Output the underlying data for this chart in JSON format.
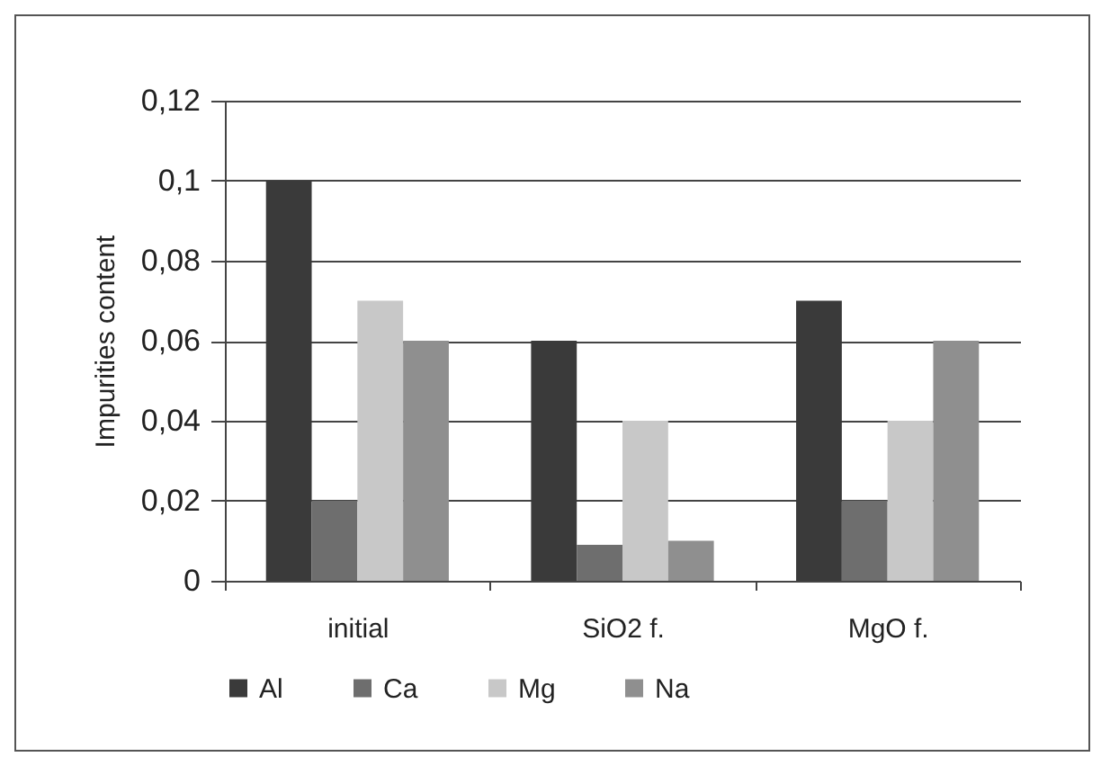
{
  "chart_data": {
    "type": "bar",
    "ylabel": "Impurities content",
    "categories": [
      "initial",
      "SiO2 f.",
      "MgO f."
    ],
    "series": [
      {
        "name": "Al",
        "color": "#3a3a3a",
        "values": [
          0.1,
          0.06,
          0.07
        ]
      },
      {
        "name": "Ca",
        "color": "#6e6e6e",
        "values": [
          0.02,
          0.009,
          0.02
        ]
      },
      {
        "name": "Mg",
        "color": "#c8c8c8",
        "values": [
          0.07,
          0.04,
          0.04
        ]
      },
      {
        "name": "Na",
        "color": "#8f8f8f",
        "values": [
          0.06,
          0.01,
          0.06
        ]
      }
    ],
    "ylim": [
      0,
      0.12
    ],
    "yticks": [
      0,
      {
        "value": 0.02,
        "label": "0,02"
      },
      {
        "value": 0.04,
        "label": "0,04"
      },
      {
        "value": 0.06,
        "label": "0,06"
      },
      {
        "value": 0.08,
        "label": "0,08"
      },
      {
        "value": 0.1,
        "label": "0,1"
      },
      {
        "value": 0.12,
        "label": "0,12"
      }
    ],
    "grid": "y",
    "legend": "bottom"
  }
}
